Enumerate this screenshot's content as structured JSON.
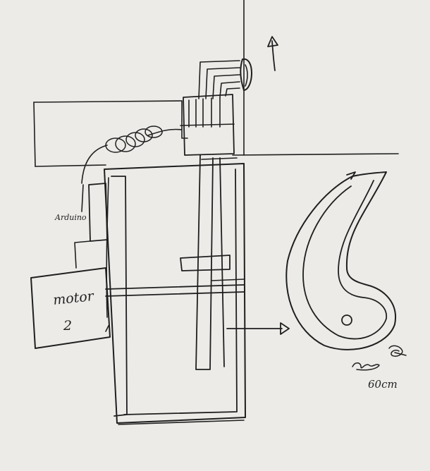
{
  "labels": {
    "arduino": "Arduino",
    "motor_line1": "motor",
    "motor_line2": "2",
    "dimension": "60cm"
  },
  "colors": {
    "paper": "#ecebe8",
    "ink": "#1f1f1f"
  }
}
